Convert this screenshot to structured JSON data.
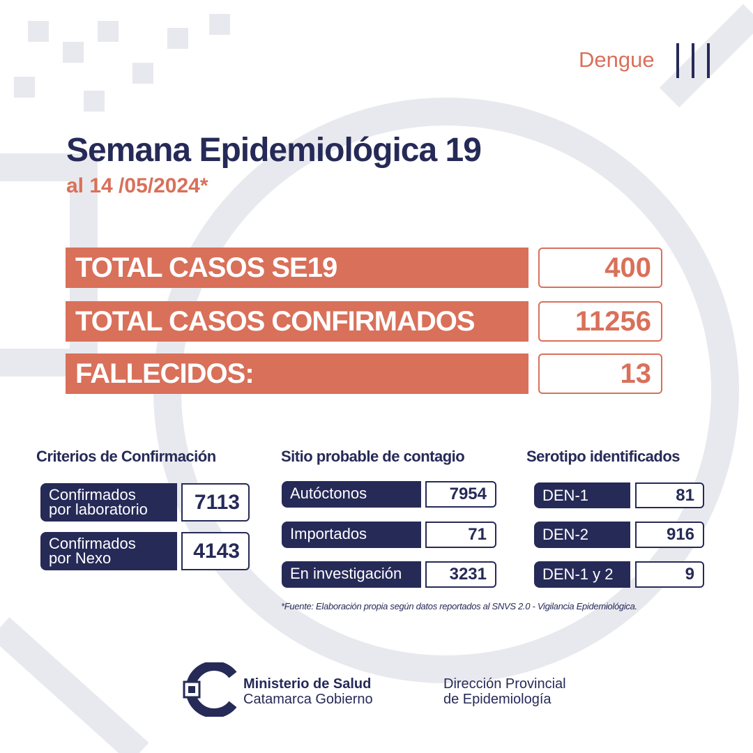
{
  "header": {
    "tag": "Dengue",
    "title": "Semana Epidemiológica 19",
    "subtitle": "al 14 /05/2024*"
  },
  "totals": [
    {
      "label": "TOTAL CASOS SE19",
      "value": "400"
    },
    {
      "label": "TOTAL CASOS CONFIRMADOS",
      "value": "11256"
    },
    {
      "label": "FALLECIDOS:",
      "value": "13"
    }
  ],
  "criterios": {
    "title": "Criterios de Confirmación",
    "items": [
      {
        "label_line1": "Confirmados",
        "label_line2": "por laboratorio",
        "value": "7113"
      },
      {
        "label_line1": "Confirmados",
        "label_line2": "por Nexo",
        "value": "4143"
      }
    ]
  },
  "sitio": {
    "title": "Sitio probable de contagio",
    "items": [
      {
        "label": "Autóctonos",
        "value": "7954"
      },
      {
        "label": "Importados",
        "value": "71"
      },
      {
        "label": "En investigación",
        "value": "3231"
      }
    ]
  },
  "serotipo": {
    "title": "Serotipo identificados",
    "items": [
      {
        "label": "DEN-1",
        "value": "81"
      },
      {
        "label": "DEN-2",
        "value": "916"
      },
      {
        "label": "DEN-1 y 2",
        "value": "9"
      }
    ]
  },
  "footnote": "*Fuente: Elaboración propia según datos reportados al SNVS 2.0 - Vigilancia Epidemiológica.",
  "footer": {
    "ministry_line1": "Ministerio de Salud",
    "ministry_line2": "Catamarca Gobierno",
    "direction_line1": "Dirección Provincial",
    "direction_line2": "de Epidemiología"
  },
  "colors": {
    "navy": "#262a57",
    "orange": "#d9705a",
    "pattern": "#e8e9ee"
  }
}
